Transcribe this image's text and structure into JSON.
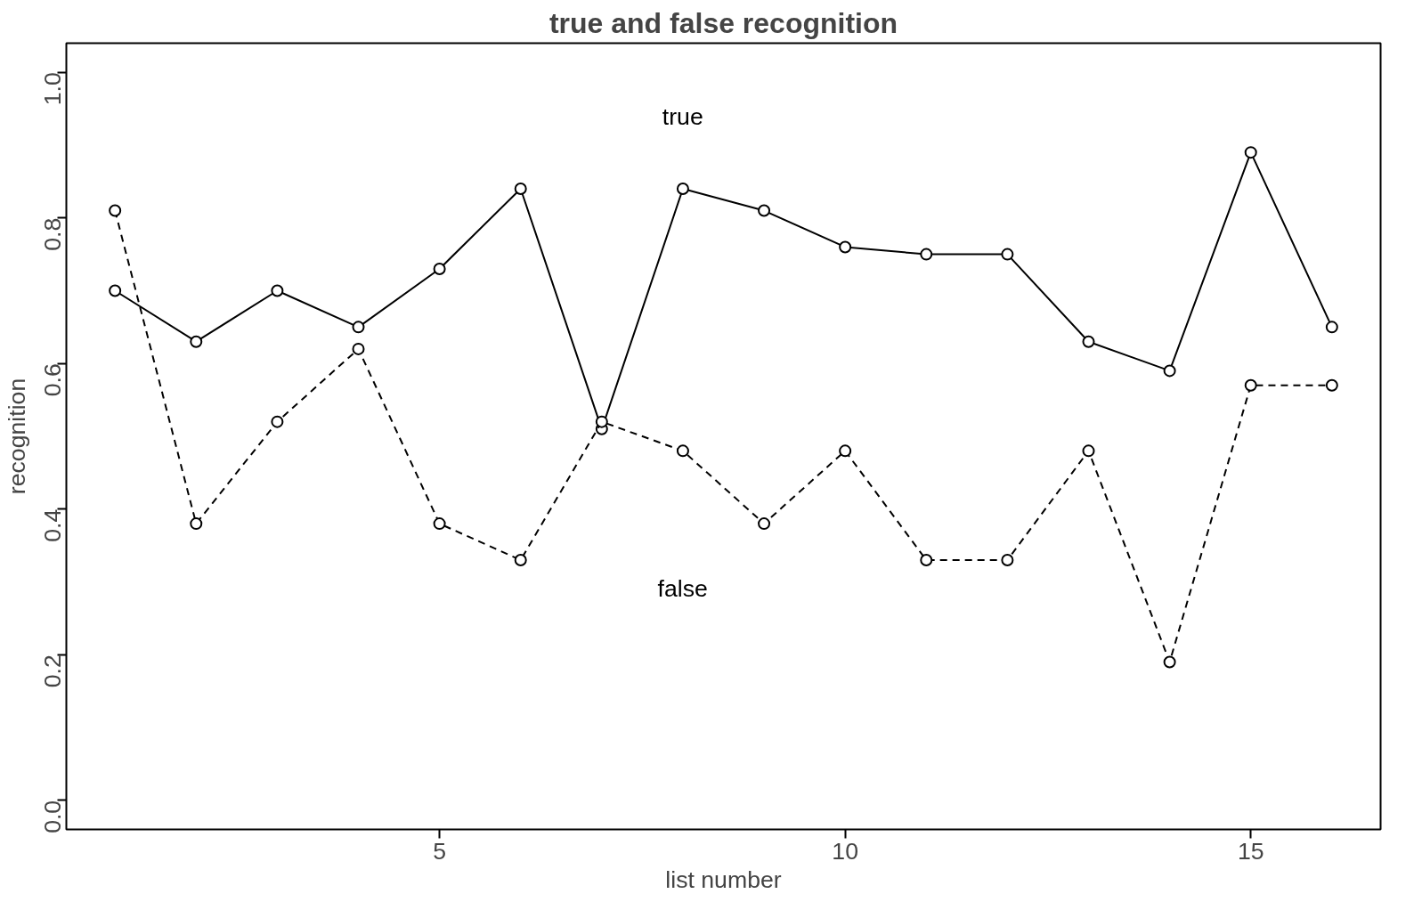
{
  "chart_data": {
    "type": "line",
    "title": "true and false recognition",
    "xlabel": "list number",
    "ylabel": "recognition",
    "x": [
      1,
      2,
      3,
      4,
      5,
      6,
      7,
      8,
      9,
      10,
      11,
      12,
      13,
      14,
      15,
      16
    ],
    "series": [
      {
        "name": "true",
        "color": "#000000",
        "line_style": "solid",
        "values": [
          0.7,
          0.63,
          0.7,
          0.65,
          0.73,
          0.84,
          0.51,
          0.84,
          0.81,
          0.76,
          0.75,
          0.75,
          0.63,
          0.59,
          0.89,
          0.65
        ]
      },
      {
        "name": "false",
        "color": "#000000",
        "line_style": "dashed",
        "values": [
          0.81,
          0.38,
          0.52,
          0.62,
          0.38,
          0.33,
          0.52,
          0.48,
          0.38,
          0.48,
          0.33,
          0.33,
          0.48,
          0.19,
          0.57,
          0.57
        ]
      }
    ],
    "marker": "circle",
    "grid": false,
    "xlim": [
      0.4,
      16.6
    ],
    "ylim": [
      -0.04,
      1.04
    ],
    "xticks": [
      5,
      10,
      15
    ],
    "yticks": [
      {
        "value": 0,
        "label": "0.0"
      },
      0.2,
      0.4,
      0.6,
      0.8,
      {
        "value": 1,
        "label": "1.0"
      }
    ]
  }
}
